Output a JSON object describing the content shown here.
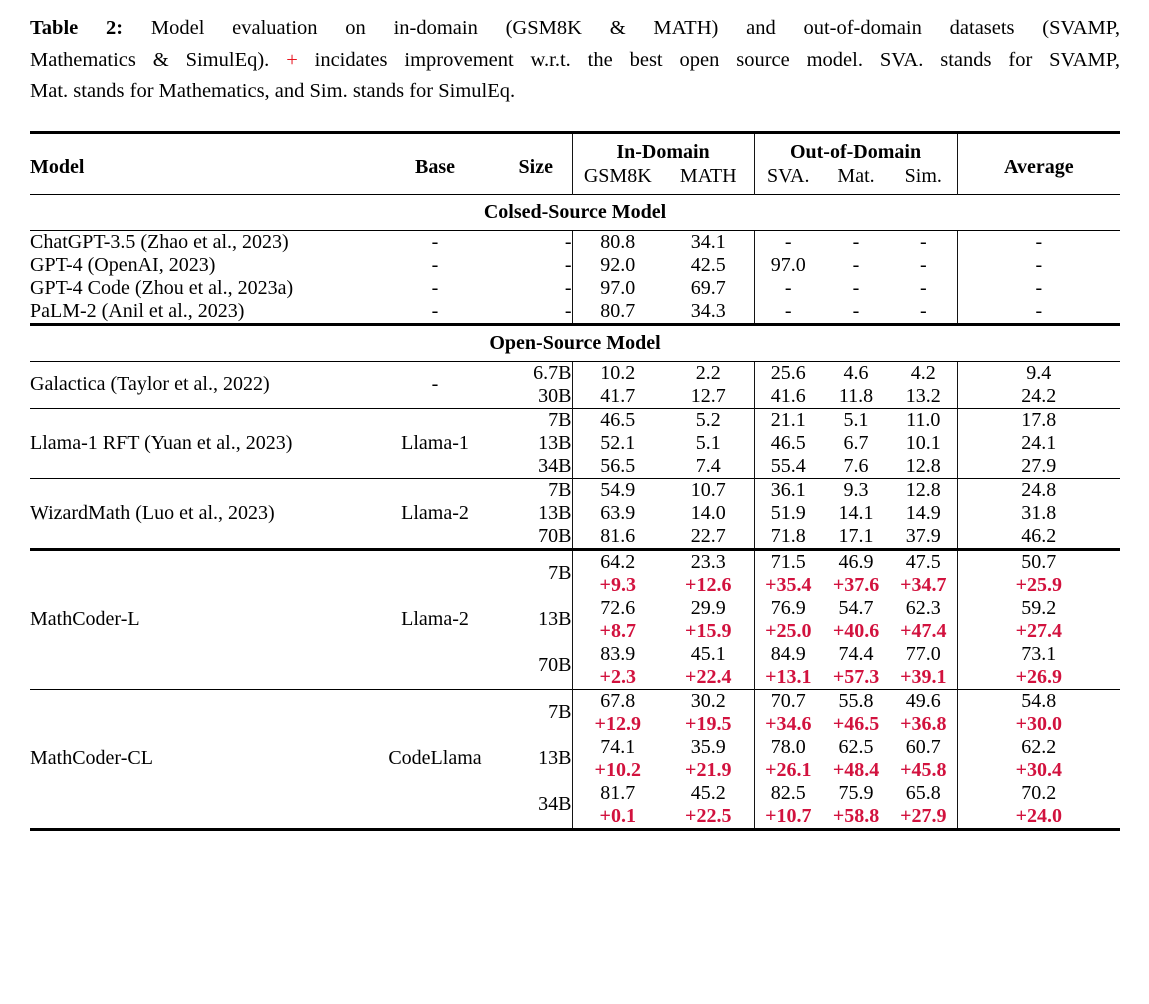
{
  "colors": {
    "caption_plus_red": "#e8141e",
    "delta_red": "#d2123e",
    "text": "#000000",
    "rule": "#000000"
  },
  "caption": {
    "lines": [
      {
        "segments": [
          {
            "text": "Table 2:",
            "style": "bold"
          },
          {
            "text": "  Model evaluation on in-domain (GSM8K & MATH) and out-of-domain datasets (SVAMP,"
          }
        ]
      },
      {
        "segments": [
          {
            "text": "Mathematics & SimulEq). "
          },
          {
            "text": "+",
            "style": "red"
          },
          {
            "text": " incidates improvement w.r.t. the best open source model. SVA. stands for SVAMP,"
          }
        ]
      },
      {
        "segments": [
          {
            "text": "Mat. stands for Mathematics, and Sim. stands for SimulEq."
          }
        ]
      }
    ]
  },
  "table": {
    "header": {
      "model": "Model",
      "base": "Base",
      "size": "Size",
      "in_domain": "In-Domain",
      "out_of_domain": "Out-of-Domain",
      "sub_columns": [
        "GSM8K",
        "MATH",
        "SVA.",
        "Mat.",
        "Sim."
      ],
      "average": "Average"
    },
    "sections": [
      {
        "title": "Colsed-Source Model",
        "groups": [
          {
            "model": "ChatGPT-3.5 (Zhao et al., 2023)",
            "base": "-",
            "rows": [
              {
                "size": "-",
                "values": [
                  "80.8",
                  "34.1",
                  "-",
                  "-",
                  "-",
                  "-"
                ]
              }
            ]
          },
          {
            "model": "GPT-4 (OpenAI, 2023)",
            "base": "-",
            "rows": [
              {
                "size": "-",
                "values": [
                  "92.0",
                  "42.5",
                  "97.0",
                  "-",
                  "-",
                  "-"
                ]
              }
            ]
          },
          {
            "model": "GPT-4 Code (Zhou et al., 2023a)",
            "base": "-",
            "rows": [
              {
                "size": "-",
                "values": [
                  "97.0",
                  "69.7",
                  "-",
                  "-",
                  "-",
                  "-"
                ]
              }
            ]
          },
          {
            "model": "PaLM-2 (Anil et al., 2023)",
            "base": "-",
            "rows": [
              {
                "size": "-",
                "values": [
                  "80.7",
                  "34.3",
                  "-",
                  "-",
                  "-",
                  "-"
                ]
              }
            ]
          }
        ]
      },
      {
        "title": "Open-Source Model",
        "groups": [
          {
            "model": "Galactica (Taylor et al., 2022)",
            "base": "-",
            "rows": [
              {
                "size": "6.7B",
                "values": [
                  "10.2",
                  "2.2",
                  "25.6",
                  "4.6",
                  "4.2",
                  "9.4"
                ]
              },
              {
                "size": "30B",
                "values": [
                  "41.7",
                  "12.7",
                  "41.6",
                  "11.8",
                  "13.2",
                  "24.2"
                ]
              }
            ]
          },
          {
            "model": "Llama-1 RFT (Yuan et al., 2023)",
            "base": "Llama-1",
            "rows": [
              {
                "size": "7B",
                "values": [
                  "46.5",
                  "5.2",
                  "21.1",
                  "5.1",
                  "11.0",
                  "17.8"
                ]
              },
              {
                "size": "13B",
                "values": [
                  "52.1",
                  "5.1",
                  "46.5",
                  "6.7",
                  "10.1",
                  "24.1"
                ]
              },
              {
                "size": "34B",
                "values": [
                  "56.5",
                  "7.4",
                  "55.4",
                  "7.6",
                  "12.8",
                  "27.9"
                ]
              }
            ]
          },
          {
            "model": "WizardMath (Luo et al., 2023)",
            "base": "Llama-2",
            "rows": [
              {
                "size": "7B",
                "values": [
                  "54.9",
                  "10.7",
                  "36.1",
                  "9.3",
                  "12.8",
                  "24.8"
                ]
              },
              {
                "size": "13B",
                "values": [
                  "63.9",
                  "14.0",
                  "51.9",
                  "14.1",
                  "14.9",
                  "31.8"
                ]
              },
              {
                "size": "70B",
                "values": [
                  "81.6",
                  "22.7",
                  "71.8",
                  "17.1",
                  "37.9",
                  "46.2"
                ]
              }
            ]
          },
          {
            "model": "MathCoder-L",
            "base": "Llama-2",
            "rows": [
              {
                "size": "7B",
                "values": [
                  "64.2",
                  "23.3",
                  "71.5",
                  "46.9",
                  "47.5",
                  "50.7"
                ],
                "deltas": [
                  "+9.3",
                  "+12.6",
                  "+35.4",
                  "+37.6",
                  "+34.7",
                  "+25.9"
                ]
              },
              {
                "size": "13B",
                "values": [
                  "72.6",
                  "29.9",
                  "76.9",
                  "54.7",
                  "62.3",
                  "59.2"
                ],
                "deltas": [
                  "+8.7",
                  "+15.9",
                  "+25.0",
                  "+40.6",
                  "+47.4",
                  "+27.4"
                ]
              },
              {
                "size": "70B",
                "values": [
                  "83.9",
                  "45.1",
                  "84.9",
                  "74.4",
                  "77.0",
                  "73.1"
                ],
                "deltas": [
                  "+2.3",
                  "+22.4",
                  "+13.1",
                  "+57.3",
                  "+39.1",
                  "+26.9"
                ]
              }
            ]
          },
          {
            "model": "MathCoder-CL",
            "base": "CodeLlama",
            "rows": [
              {
                "size": "7B",
                "values": [
                  "67.8",
                  "30.2",
                  "70.7",
                  "55.8",
                  "49.6",
                  "54.8"
                ],
                "deltas": [
                  "+12.9",
                  "+19.5",
                  "+34.6",
                  "+46.5",
                  "+36.8",
                  "+30.0"
                ]
              },
              {
                "size": "13B",
                "values": [
                  "74.1",
                  "35.9",
                  "78.0",
                  "62.5",
                  "60.7",
                  "62.2"
                ],
                "deltas": [
                  "+10.2",
                  "+21.9",
                  "+26.1",
                  "+48.4",
                  "+45.8",
                  "+30.4"
                ]
              },
              {
                "size": "34B",
                "values": [
                  "81.7",
                  "45.2",
                  "82.5",
                  "75.9",
                  "65.8",
                  "70.2"
                ],
                "deltas": [
                  "+0.1",
                  "+22.5",
                  "+10.7",
                  "+58.8",
                  "+27.9",
                  "+24.0"
                ]
              }
            ]
          }
        ]
      }
    ]
  }
}
